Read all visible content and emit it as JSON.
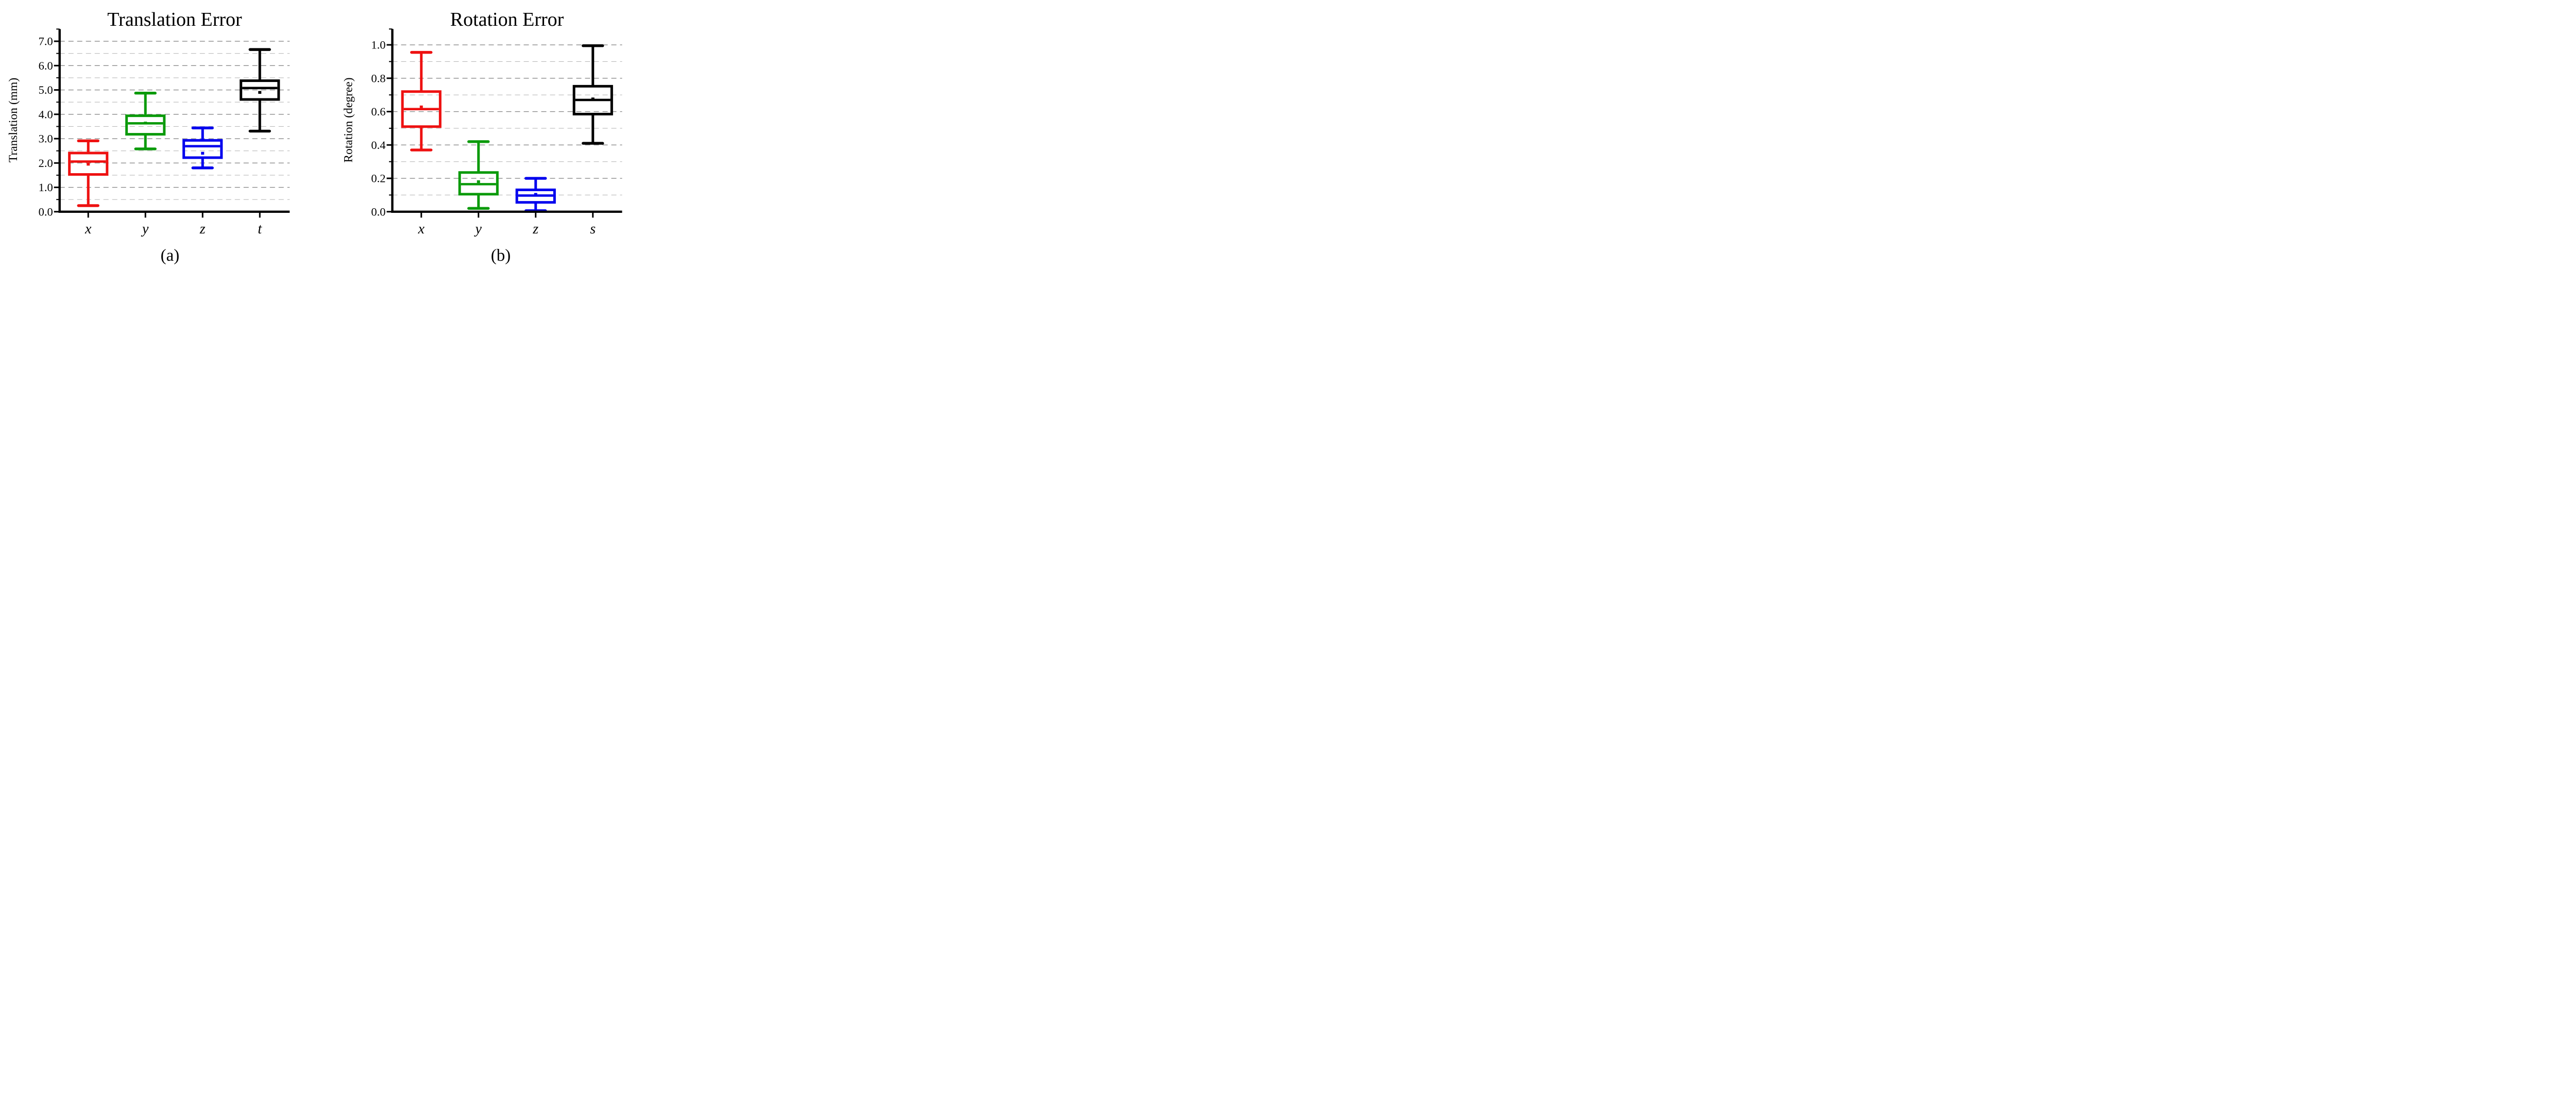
{
  "figure": {
    "background": "#ffffff",
    "panel_count": 2
  },
  "chart_data": [
    {
      "type": "box",
      "title": "Translation Error",
      "ylabel": "Translation (mm)",
      "caption": "(a)",
      "categories": [
        "x",
        "y",
        "z",
        "t"
      ],
      "colors": [
        "#ee1111",
        "#0a9a0a",
        "#0000ee",
        "#000000"
      ],
      "ylim": [
        0,
        7.5
      ],
      "ytick_step": 1.0,
      "ytick_labels": [
        "0.0",
        "1.0",
        "2.0",
        "3.0",
        "4.0",
        "5.0",
        "6.0",
        "7.0"
      ],
      "minor_tick_step": 0.5,
      "grid": true,
      "grid_interval": 0.5,
      "legend_position": "none",
      "boxes": [
        {
          "category": "x",
          "whisker_low": 0.25,
          "q1": 1.53,
          "median": 2.06,
          "mean": 1.95,
          "q3": 2.41,
          "whisker_high": 2.91
        },
        {
          "category": "y",
          "whisker_low": 2.58,
          "q1": 3.18,
          "median": 3.63,
          "mean": 3.64,
          "q3": 3.94,
          "whisker_high": 4.87
        },
        {
          "category": "z",
          "whisker_low": 1.8,
          "q1": 2.22,
          "median": 2.69,
          "mean": 2.4,
          "q3": 2.93,
          "whisker_high": 3.44
        },
        {
          "category": "t",
          "whisker_low": 3.31,
          "q1": 4.61,
          "median": 5.08,
          "mean": 4.9,
          "q3": 5.38,
          "whisker_high": 6.66
        }
      ]
    },
    {
      "type": "box",
      "title": "Rotation Error",
      "ylabel": "Rotation (degree)",
      "caption": "(b)",
      "categories": [
        "x",
        "y",
        "z",
        "s"
      ],
      "colors": [
        "#ee1111",
        "#0a9a0a",
        "#0000ee",
        "#000000"
      ],
      "ylim": [
        0,
        1.1
      ],
      "ytick_step": 0.2,
      "ytick_labels": [
        "0.0",
        "0.2",
        "0.4",
        "0.6",
        "0.8",
        "1.0"
      ],
      "minor_tick_step": 0.1,
      "grid": true,
      "grid_interval": 0.1,
      "legend_position": "none",
      "boxes": [
        {
          "category": "x",
          "whisker_low": 0.37,
          "q1": 0.51,
          "median": 0.615,
          "mean": 0.628,
          "q3": 0.72,
          "whisker_high": 0.955
        },
        {
          "category": "y",
          "whisker_low": 0.02,
          "q1": 0.105,
          "median": 0.165,
          "mean": 0.18,
          "q3": 0.235,
          "whisker_high": 0.42
        },
        {
          "category": "z",
          "whisker_low": 0.006,
          "q1": 0.056,
          "median": 0.097,
          "mean": 0.104,
          "q3": 0.131,
          "whisker_high": 0.2
        },
        {
          "category": "s",
          "whisker_low": 0.41,
          "q1": 0.585,
          "median": 0.67,
          "mean": 0.676,
          "q3": 0.752,
          "whisker_high": 0.995
        }
      ]
    }
  ]
}
